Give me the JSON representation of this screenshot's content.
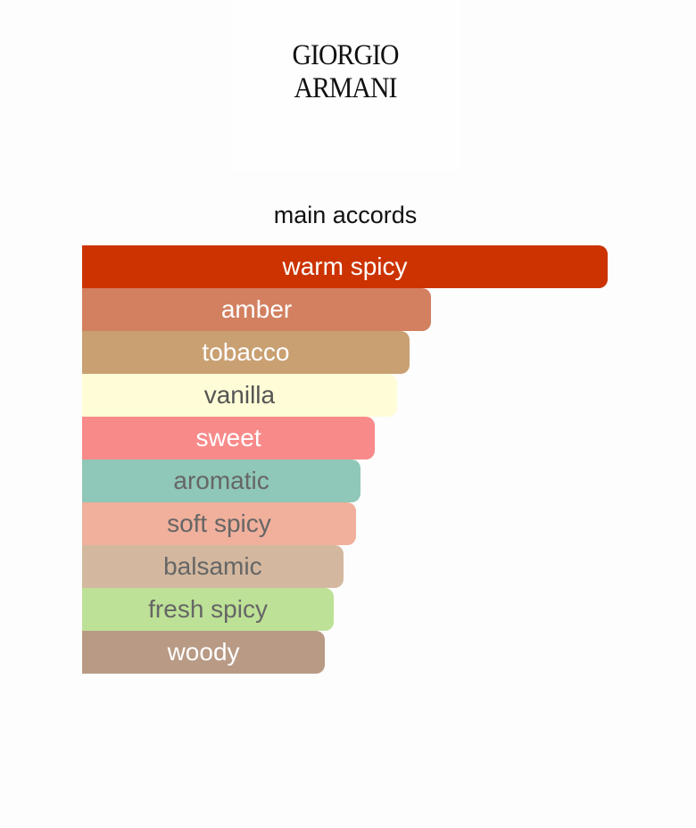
{
  "brand": "GIORGIO ARMANI",
  "chart_data": {
    "type": "bar",
    "orientation": "horizontal",
    "title": "main accords",
    "categories": [
      "warm spicy",
      "amber",
      "tobacco",
      "vanilla",
      "sweet",
      "aromatic",
      "soft spicy",
      "balsamic",
      "fresh spicy",
      "woody"
    ],
    "values": [
      100,
      66.4,
      62.3,
      59.9,
      55.7,
      53.0,
      52.1,
      49.7,
      47.9,
      46.2
    ],
    "colors": [
      "#cc3300",
      "#d28060",
      "#c9a072",
      "#fffdd7",
      "#f98a8a",
      "#8fc7b8",
      "#f0b09c",
      "#d3b89f",
      "#bde196",
      "#b89a85"
    ],
    "text_colors": [
      "#ffffff",
      "#ffffff",
      "#ffffff",
      "#555555",
      "#ffffff",
      "#666666",
      "#666666",
      "#666666",
      "#666666",
      "#ffffff"
    ]
  }
}
